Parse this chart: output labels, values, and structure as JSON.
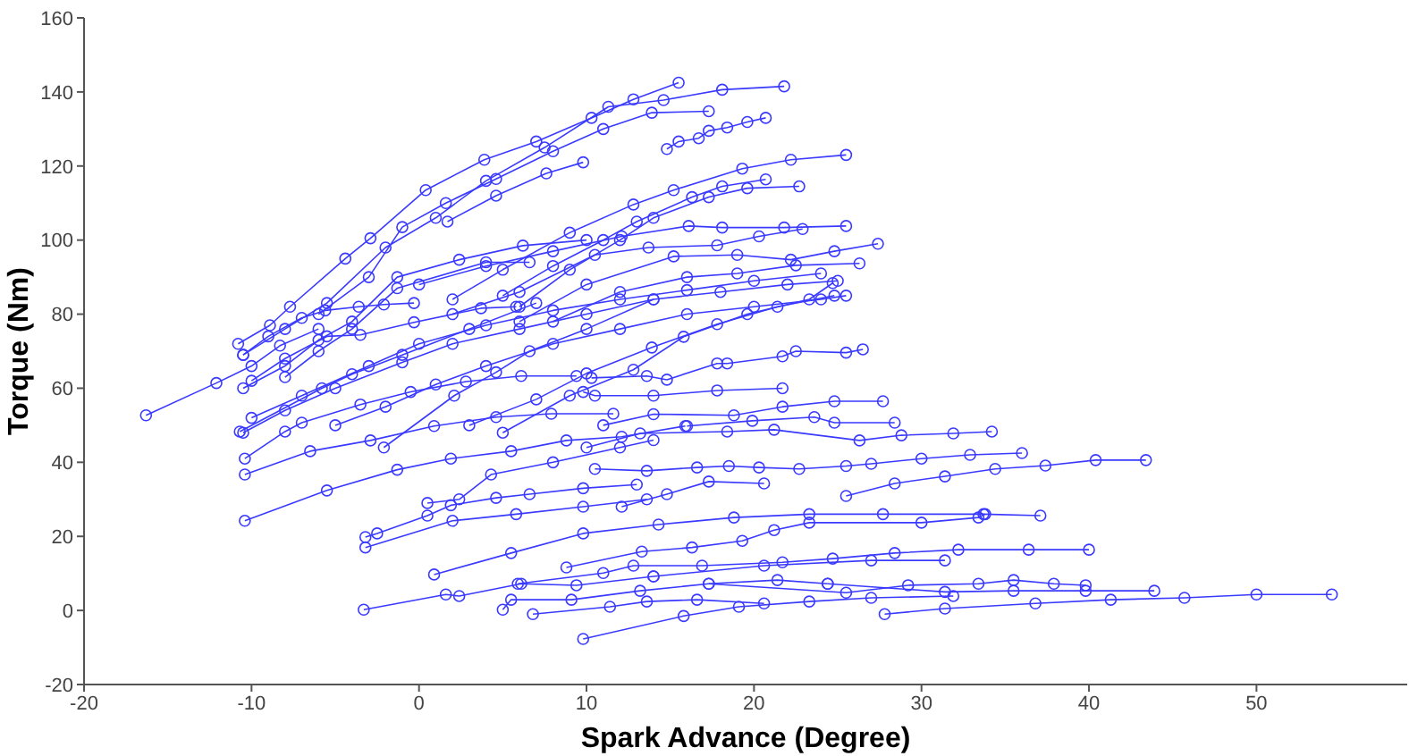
{
  "chart_data": {
    "type": "line",
    "xlabel": "Spark Advance (Degree)",
    "ylabel": "Torque (Nm)",
    "xlim": [
      -20,
      59
    ],
    "ylim": [
      -20,
      160
    ],
    "xticks": [
      -20,
      -10,
      0,
      10,
      20,
      30,
      40,
      50
    ],
    "yticks": [
      -20,
      0,
      20,
      40,
      60,
      80,
      100,
      120,
      140,
      160
    ],
    "marker": "circle",
    "series": [
      {
        "color": "#3a3aff",
        "x": [
          -10.8,
          -8.9,
          -7.7,
          -4.4,
          -2.9,
          0.4,
          3.9,
          7,
          10.3,
          12.8,
          15.5
        ],
        "values": [
          72,
          77,
          82,
          95,
          100.5,
          113.5,
          121.7,
          126.6,
          133,
          138,
          142.5
        ]
      },
      {
        "color": "#3a3aff",
        "x": [
          -10.5,
          -8,
          -5.5,
          -2,
          1,
          4,
          7.5,
          11.3,
          14.6,
          18.1,
          21.8
        ],
        "values": [
          69,
          76,
          83,
          98,
          106,
          116,
          125,
          136,
          137.8,
          140.6,
          141.5
        ]
      },
      {
        "color": "#3a3aff",
        "x": [
          -6,
          -3,
          -1,
          1.6,
          4.6,
          8,
          11,
          13.9,
          17.3
        ],
        "values": [
          80,
          90,
          103.5,
          110,
          116.5,
          124,
          130,
          134.4,
          134.8
        ]
      },
      {
        "color": "#3a3aff",
        "x": [
          1.7,
          4.6,
          7.6,
          9.8
        ],
        "values": [
          105,
          112,
          118,
          121
        ]
      },
      {
        "color": "#3a3aff",
        "x": [
          14.8,
          15.5,
          16.7,
          17.3,
          18.4,
          19.6,
          20.7
        ],
        "values": [
          124.6,
          126.6,
          127.5,
          129.5,
          130.4,
          131.9,
          133
        ]
      },
      {
        "color": "#3a3aff",
        "x": [
          2,
          5,
          9,
          12.8,
          15.2,
          19.3,
          22.2,
          25.5
        ],
        "values": [
          84,
          92,
          102,
          109.6,
          113.5,
          119.3,
          121.7,
          123
        ]
      },
      {
        "color": "#3a3aff",
        "x": [
          5,
          8,
          11,
          13,
          16.3,
          18.1,
          20.7
        ],
        "values": [
          85,
          93,
          100,
          105,
          111.6,
          114.5,
          116.4
        ]
      },
      {
        "color": "#3a3aff",
        "x": [
          6,
          9,
          12,
          14,
          17.3,
          19.6,
          22.7
        ],
        "values": [
          82,
          92,
          100,
          106,
          111.6,
          114,
          114.5
        ]
      },
      {
        "color": "#3a3aff",
        "x": [
          0,
          4,
          8,
          12.1,
          16.1,
          18.1,
          21.8,
          25.5
        ],
        "values": [
          88,
          93,
          97,
          101,
          103.8,
          103.4,
          103.4,
          103.8
        ]
      },
      {
        "color": "#3a3aff",
        "x": [
          2,
          6,
          10.5,
          13.7,
          17.8,
          20.3,
          22.9
        ],
        "values": [
          80,
          86,
          96,
          98,
          98.6,
          101,
          103
        ]
      },
      {
        "color": "#3a3aff",
        "x": [
          6,
          10,
          15.2,
          19,
          22.2,
          24.8,
          27.4
        ],
        "values": [
          78,
          88,
          95.6,
          96,
          94.7,
          97,
          99
        ]
      },
      {
        "color": "#3a3aff",
        "x": [
          8,
          12,
          16,
          19,
          22.5,
          26.3
        ],
        "values": [
          78,
          86,
          90,
          91,
          93.2,
          93.7
        ]
      },
      {
        "color": "#3a3aff",
        "x": [
          -10.5,
          -8,
          -6,
          -4,
          -1.3,
          2.4,
          6.2,
          10
        ],
        "values": [
          60,
          66,
          73,
          78,
          90,
          94.7,
          98.5,
          100
        ]
      },
      {
        "color": "#3a3aff",
        "x": [
          -8,
          -6,
          -4,
          -1.3,
          4,
          6.6
        ],
        "values": [
          63,
          70,
          76,
          87,
          94,
          94
        ]
      },
      {
        "color": "#3a3aff",
        "x": [
          -10.5,
          -9,
          -7,
          -5.6,
          -3.6,
          -2.1,
          -0.3
        ],
        "values": [
          69,
          74,
          79,
          81,
          82,
          82.6,
          83
        ]
      },
      {
        "color": "#3a3aff",
        "x": [
          -10,
          -8,
          -5.5,
          -3.5,
          -0.3,
          3.7,
          5.8
        ],
        "values": [
          62,
          68,
          74,
          74.4,
          77.8,
          81.6,
          82
        ]
      },
      {
        "color": "#3a3aff",
        "x": [
          -10.5,
          -8,
          -5,
          -1,
          2,
          6,
          10,
          14,
          18,
          22,
          25
        ],
        "values": [
          48,
          54,
          60,
          67,
          72,
          76,
          80,
          84,
          86,
          88,
          89
        ]
      },
      {
        "color": "#3a3aff",
        "x": [
          -10,
          -7,
          -3,
          0,
          4,
          8,
          12,
          16,
          20,
          24
        ],
        "values": [
          52,
          58,
          66,
          72,
          77,
          81,
          84,
          86.5,
          89,
          91
        ]
      },
      {
        "color": "#3a3aff",
        "x": [
          -5,
          -2,
          1,
          4,
          8,
          12,
          16,
          20,
          24,
          25.5
        ],
        "values": [
          50,
          55,
          61,
          66,
          72,
          76,
          80,
          82,
          84,
          85
        ]
      },
      {
        "color": "#3a3aff",
        "x": [
          3,
          7,
          10,
          13.9,
          17.8,
          21.4,
          24.8
        ],
        "values": [
          50,
          57,
          64,
          71,
          77.3,
          82,
          85
        ]
      },
      {
        "color": "#3a3aff",
        "x": [
          5,
          9,
          12.8,
          15.8,
          19.6,
          23.3,
          24.7
        ],
        "values": [
          48,
          58,
          65,
          73.9,
          80,
          84,
          88.4
        ]
      },
      {
        "color": "#3a3aff",
        "x": [
          -16.3,
          -12.1,
          -10,
          -8.3,
          -6
        ],
        "values": [
          52.7,
          61.4,
          66,
          71.5,
          76
        ]
      },
      {
        "color": "#3a3aff",
        "x": [
          -10.4,
          -5.5,
          -1.3,
          1.9,
          5.5,
          8.8,
          12.1,
          15.9
        ],
        "values": [
          24.2,
          32.4,
          38,
          41,
          43,
          45.9,
          46.9,
          49.8
        ]
      },
      {
        "color": "#3a3aff",
        "x": [
          -10.4,
          -6.5,
          -2.9,
          0.9,
          4.6,
          7.9,
          11.6
        ],
        "values": [
          36.7,
          43,
          45.9,
          49.8,
          52.2,
          53.1,
          53.1
        ]
      },
      {
        "color": "#3a3aff",
        "x": [
          -10.4,
          -8,
          -7,
          -3.5,
          -0.5,
          2.8,
          6.1,
          9.4
        ],
        "values": [
          41,
          48.3,
          50.7,
          55.6,
          59,
          61.8,
          63.3,
          63.3
        ]
      },
      {
        "color": "#3a3aff",
        "x": [
          -10.7,
          -5.8,
          -4,
          -1,
          3,
          7
        ],
        "values": [
          48.3,
          60,
          63.8,
          69,
          76,
          83
        ]
      },
      {
        "color": "#3a3aff",
        "x": [
          -2.1,
          2.1,
          4.6,
          6.6,
          10,
          14
        ],
        "values": [
          44,
          58,
          64.3,
          70,
          76,
          84
        ]
      },
      {
        "color": "#3a3aff",
        "x": [
          -3.2,
          -2.5,
          0.5,
          1.9,
          4.6,
          6.6,
          9.8,
          13
        ],
        "values": [
          19.8,
          20.8,
          25.6,
          28.4,
          30.4,
          31.4,
          33,
          34
        ]
      },
      {
        "color": "#3a3aff",
        "x": [
          -3.2,
          2,
          5.8,
          9.8,
          13.6
        ],
        "values": [
          17,
          24.2,
          26,
          28,
          30
        ]
      },
      {
        "color": "#3a3aff",
        "x": [
          0.5,
          2.4,
          4.3,
          8,
          12,
          14
        ],
        "values": [
          29,
          30,
          36.7,
          40,
          44,
          46
        ]
      },
      {
        "color": "#3a3aff",
        "x": [
          -3.3,
          1.6,
          2.4,
          6.1,
          9.4,
          14
        ],
        "values": [
          0.2,
          4.3,
          3.9,
          7.2,
          6.8,
          9.2
        ]
      },
      {
        "color": "#3a3aff",
        "x": [
          0.9,
          5.5,
          9.8,
          14.3,
          18.8,
          23.3,
          27.7,
          33.7,
          37.1
        ],
        "values": [
          9.7,
          15.5,
          20.8,
          23.2,
          25.1,
          26,
          26,
          26,
          25.6
        ]
      },
      {
        "color": "#3a3aff",
        "x": [
          5,
          5.5,
          9.1,
          13.2,
          17.3,
          21.4,
          24.4
        ],
        "values": [
          0.2,
          2.9,
          2.9,
          5.3,
          7.2,
          8.2,
          7.2
        ]
      },
      {
        "color": "#3a3aff",
        "x": [
          9.8,
          15.8,
          19.1,
          23.3,
          27,
          31.9
        ],
        "values": [
          -7.7,
          -1.5,
          1,
          2.4,
          3.4,
          3.9
        ]
      },
      {
        "color": "#3a3aff",
        "x": [
          6.8,
          11.4,
          13.6,
          16.6,
          20.6
        ],
        "values": [
          -1,
          1,
          2.4,
          2.9,
          1.9
        ]
      },
      {
        "color": "#3a3aff",
        "x": [
          27.8,
          31.4,
          36.8,
          41.3,
          45.7,
          50,
          54.5
        ],
        "values": [
          -1,
          0.5,
          1.9,
          2.9,
          3.4,
          4.3,
          4.3
        ]
      },
      {
        "color": "#3a3aff",
        "x": [
          5.9,
          11,
          12.8,
          16.9,
          21.7,
          24.7,
          28.4,
          32.2,
          36.4,
          40
        ],
        "values": [
          7.2,
          10.1,
          12.1,
          12.1,
          13,
          14,
          15.5,
          16.4,
          16.4,
          16.4
        ]
      },
      {
        "color": "#3a3aff",
        "x": [
          14,
          20.6,
          27,
          31.4
        ],
        "values": [
          9.2,
          12.1,
          13.5,
          13.5
        ]
      },
      {
        "color": "#3a3aff",
        "x": [
          8.8,
          13.3,
          16.3,
          19.3,
          21.2,
          23.3,
          30,
          33.4,
          33.8
        ],
        "values": [
          11.6,
          15.9,
          17,
          18.8,
          21.7,
          23.7,
          23.7,
          25.1,
          26
        ]
      },
      {
        "color": "#3a3aff",
        "x": [
          17.3,
          25.5,
          29.2,
          33.4,
          35.5,
          37.9,
          39.8
        ],
        "values": [
          7.2,
          4.8,
          6.8,
          7.2,
          8.2,
          7.2,
          6.8
        ]
      },
      {
        "color": "#3a3aff",
        "x": [
          24.4,
          31.4,
          35.5,
          39.8,
          43.9
        ],
        "values": [
          7.2,
          5,
          5.3,
          5.3,
          5.3
        ]
      },
      {
        "color": "#3a3aff",
        "x": [
          10.5,
          13.6,
          16.6,
          18.5,
          20.3,
          22.7,
          25.5,
          27,
          30,
          32.9,
          36
        ],
        "values": [
          38.2,
          37.7,
          38.6,
          39,
          38.6,
          38.2,
          39,
          39.6,
          41,
          42,
          42.5
        ]
      },
      {
        "color": "#3a3aff",
        "x": [
          12.1,
          14.8,
          17.3,
          20.6
        ],
        "values": [
          28,
          31.4,
          34.8,
          34.3
        ]
      },
      {
        "color": "#3a3aff",
        "x": [
          25.5,
          28.4,
          31.4,
          34.4,
          37.4,
          40.4,
          43.4
        ],
        "values": [
          30.9,
          34.3,
          36.2,
          38.2,
          39.1,
          40.6,
          40.6
        ]
      },
      {
        "color": "#3a3aff",
        "x": [
          10,
          13.2,
          18.4,
          21.2,
          26.3,
          28.8,
          31.9,
          34.2
        ],
        "values": [
          44,
          47.8,
          48.3,
          48.8,
          45.9,
          47.3,
          47.8,
          48.3
        ]
      },
      {
        "color": "#3a3aff",
        "x": [
          16,
          19.9,
          23.6,
          24.8,
          28.4
        ],
        "values": [
          49.8,
          51.2,
          52.2,
          50.7,
          50.7
        ]
      },
      {
        "color": "#3a3aff",
        "x": [
          11,
          14,
          18.8,
          21.7,
          24.8,
          27.7
        ],
        "values": [
          50,
          53,
          52.7,
          55,
          56.5,
          56.5
        ]
      },
      {
        "color": "#3a3aff",
        "x": [
          9.8,
          10.5,
          14,
          17.8,
          21.7
        ],
        "values": [
          59,
          58,
          58,
          59.4,
          60
        ]
      },
      {
        "color": "#3a3aff",
        "x": [
          10.3,
          13.6,
          14.8,
          17.8,
          18.4,
          21.7,
          22.5,
          25.5,
          26.5
        ],
        "values": [
          62.8,
          63.3,
          62.3,
          66.7,
          66.7,
          68.6,
          70,
          69.6,
          70.5
        ]
      }
    ]
  }
}
